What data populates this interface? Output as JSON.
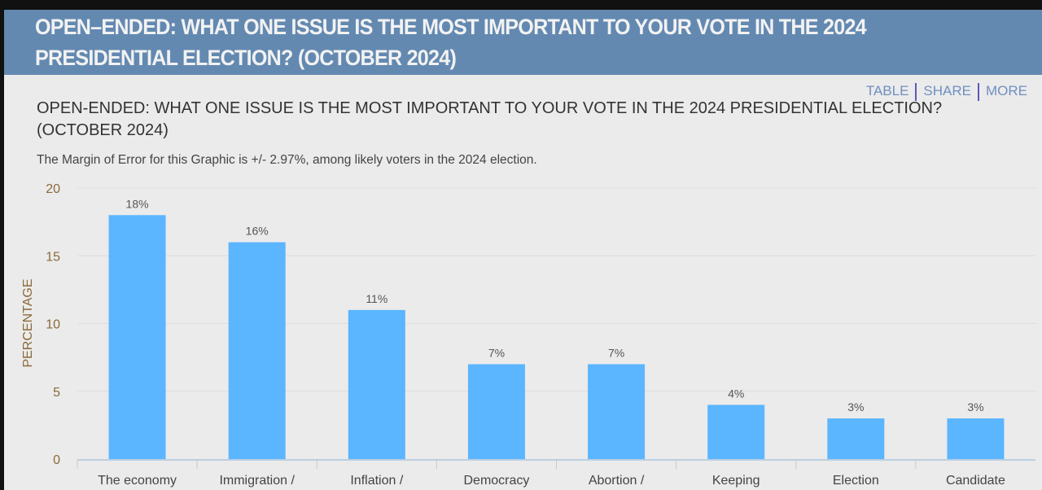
{
  "header": {
    "title": "OPEN–ENDED: WHAT ONE ISSUE IS THE MOST IMPORTANT TO YOUR VOTE IN THE 2024 PRESIDENTIAL ELECTION? (OCTOBER 2024)"
  },
  "actions": {
    "table": "TABLE",
    "share": "SHARE",
    "more": "MORE"
  },
  "colors": {
    "header_bg": "#6389b1",
    "bar": "#5bb5ff",
    "panel_bg": "#ebebeb"
  },
  "chart_data": {
    "type": "bar",
    "title": "OPEN-ENDED: WHAT ONE ISSUE IS THE MOST IMPORTANT TO YOUR VOTE IN THE 2024 PRESIDENTIAL ELECTION? (OCTOBER 2024)",
    "subtitle": "The Margin of Error for this Graphic is +/- 2.97%, among likely voters in the 2024 election.",
    "categories": [
      "The economy",
      "Immigration /",
      "Inflation /",
      "Democracy",
      "Abortion /",
      "Keeping",
      "Election",
      "Candidate"
    ],
    "values": [
      18,
      16,
      11,
      7,
      7,
      4,
      3,
      3
    ],
    "data_labels": [
      "18%",
      "16%",
      "11%",
      "7%",
      "7%",
      "4%",
      "3%",
      "3%"
    ],
    "xlabel": "",
    "ylabel": "PERCENTAGE",
    "ylim": [
      0,
      20
    ],
    "yticks": [
      "0",
      "5",
      "10",
      "15",
      "20"
    ],
    "grid": true,
    "legend": "none"
  }
}
